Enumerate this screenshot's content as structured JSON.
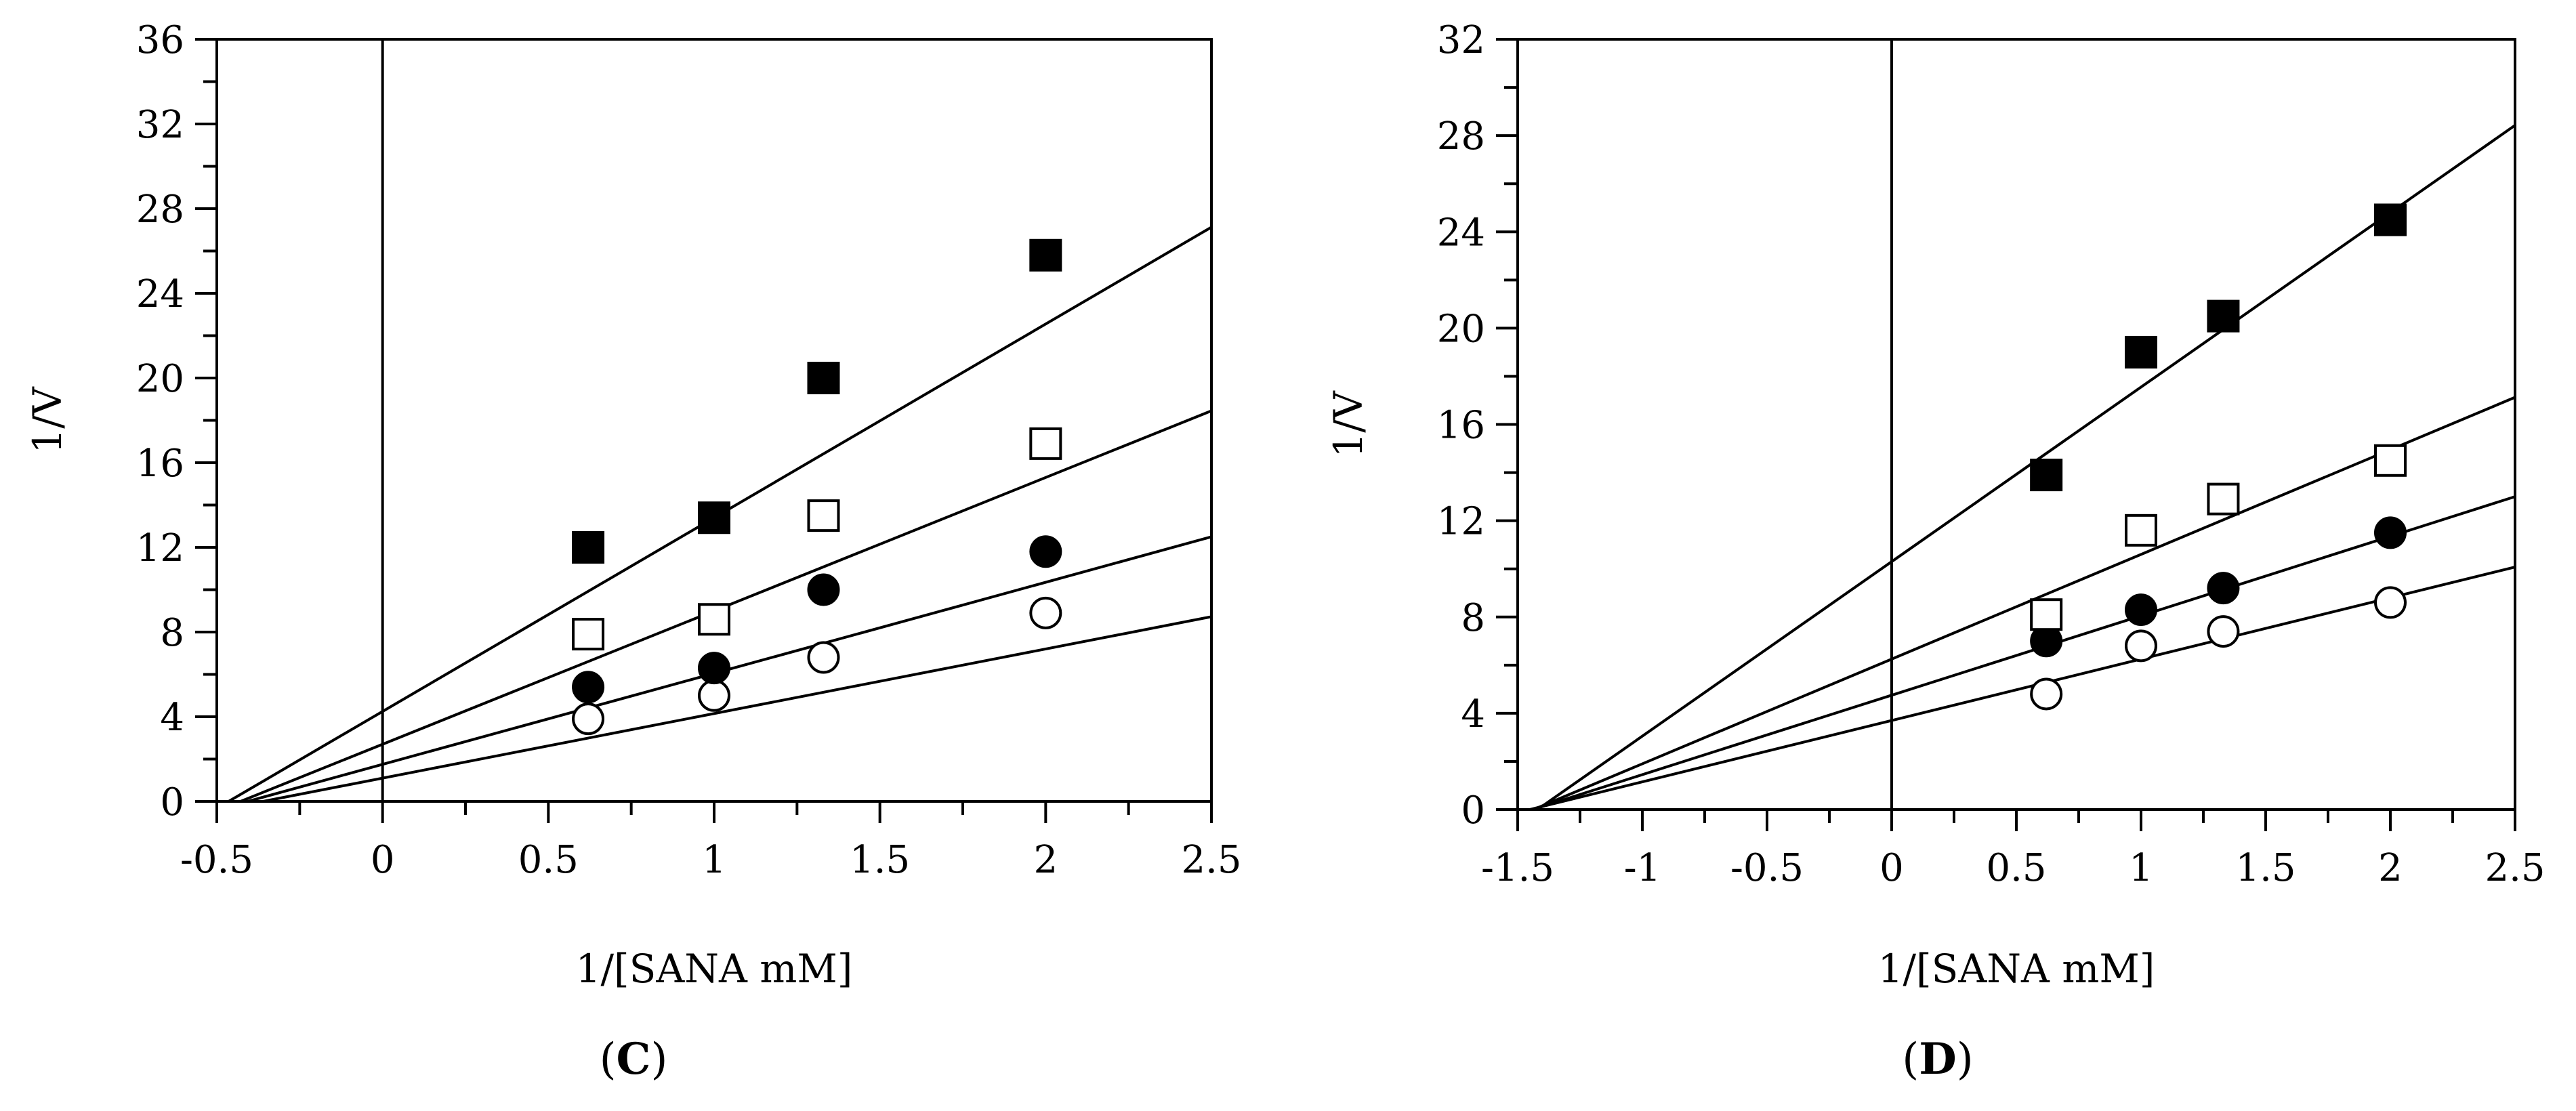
{
  "chart_data": [
    {
      "panel": "C",
      "type": "scatter",
      "xlabel": "1/[SANA mM]",
      "ylabel": "1/V",
      "xlim": [
        -0.5,
        2.5
      ],
      "ylim": [
        0,
        36
      ],
      "xticks": [
        -0.5,
        0,
        0.5,
        1,
        1.5,
        2,
        2.5
      ],
      "xtick_labels": [
        "-0.5",
        "0",
        "0.5",
        "1",
        "1.5",
        "2",
        "2.5"
      ],
      "yticks": [
        0,
        4,
        8,
        12,
        16,
        20,
        24,
        28,
        32,
        36
      ],
      "ytick_labels": [
        "0",
        "4",
        "8",
        "12",
        "16",
        "20",
        "24",
        "28",
        "32",
        "36"
      ],
      "y_minor_step": 2,
      "x_minor_step": 0.25,
      "series": [
        {
          "name": "open-circle",
          "marker": "circle-open",
          "x": [
            0.62,
            1.0,
            1.33,
            2.0
          ],
          "y": [
            3.9,
            5.0,
            6.8,
            8.9
          ],
          "fit": {
            "slope": 3.05,
            "intercept": 1.1
          }
        },
        {
          "name": "filled-circle",
          "marker": "circle-filled",
          "x": [
            0.62,
            1.0,
            1.33,
            2.0
          ],
          "y": [
            5.4,
            6.3,
            10.0,
            11.8
          ],
          "fit": {
            "slope": 4.3,
            "intercept": 1.75
          }
        },
        {
          "name": "open-square",
          "marker": "square-open",
          "x": [
            0.62,
            1.0,
            1.33,
            2.0
          ],
          "y": [
            7.9,
            8.6,
            13.5,
            16.9
          ],
          "fit": {
            "slope": 6.3,
            "intercept": 2.7
          }
        },
        {
          "name": "filled-square",
          "marker": "square-filled",
          "x": [
            0.62,
            1.0,
            1.33,
            2.0
          ],
          "y": [
            12.0,
            13.4,
            20.0,
            25.8
          ],
          "fit": {
            "slope": 9.15,
            "intercept": 4.25
          }
        }
      ]
    },
    {
      "panel": "D",
      "type": "scatter",
      "xlabel": "1/[SANA mM]",
      "ylabel": "1/V",
      "xlim": [
        -1.5,
        2.5
      ],
      "ylim": [
        0,
        32
      ],
      "xticks": [
        -1.5,
        -1,
        -0.5,
        0,
        0.5,
        1,
        1.5,
        2,
        2.5
      ],
      "xtick_labels": [
        "-1.5",
        "-1",
        "-0.5",
        "0",
        "0.5",
        "1",
        "1.5",
        "2",
        "2.5"
      ],
      "yticks": [
        0,
        4,
        8,
        12,
        16,
        20,
        24,
        28,
        32
      ],
      "ytick_labels": [
        "0",
        "4",
        "8",
        "12",
        "16",
        "20",
        "24",
        "28",
        "32"
      ],
      "y_minor_step": 2,
      "x_minor_step": 0.25,
      "series": [
        {
          "name": "open-circle",
          "marker": "circle-open",
          "x": [
            0.62,
            1.0,
            1.33,
            2.0
          ],
          "y": [
            4.8,
            6.8,
            7.4,
            8.6
          ],
          "fit": {
            "slope": 2.55,
            "intercept": 3.7
          }
        },
        {
          "name": "filled-circle",
          "marker": "circle-filled",
          "x": [
            0.62,
            1.0,
            1.33,
            2.0
          ],
          "y": [
            7.0,
            8.3,
            9.2,
            11.5
          ],
          "fit": {
            "slope": 3.3,
            "intercept": 4.75
          }
        },
        {
          "name": "open-square",
          "marker": "square-open",
          "x": [
            0.62,
            1.0,
            1.33,
            2.0
          ],
          "y": [
            8.1,
            11.6,
            12.9,
            14.5
          ],
          "fit": {
            "slope": 4.35,
            "intercept": 6.25
          }
        },
        {
          "name": "filled-square",
          "marker": "square-filled",
          "x": [
            0.62,
            1.0,
            1.33,
            2.0
          ],
          "y": [
            13.9,
            19.0,
            20.5,
            24.5
          ],
          "fit": {
            "slope": 7.25,
            "intercept": 10.3
          }
        }
      ]
    }
  ],
  "panel_labels": {
    "C": {
      "open": "(",
      "letter": "C",
      "close": ")"
    },
    "D": {
      "open": "(",
      "letter": "D",
      "close": ")"
    }
  }
}
